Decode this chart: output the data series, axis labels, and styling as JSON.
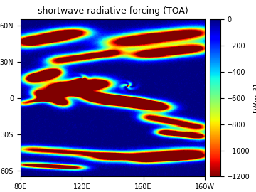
{
  "title": "shortwave radiative forcing (TOA)",
  "lon_min": 80,
  "lon_max": 200,
  "lat_min": -65,
  "lat_max": 65,
  "vmin": -1200,
  "vmax": 0,
  "colorbar_label": "[Wm⁻²]",
  "colorbar_ticks": [
    0,
    -200,
    -400,
    -600,
    -800,
    -1000,
    -1200
  ],
  "xticks": [
    80,
    120,
    160,
    200
  ],
  "xtick_labels": [
    "80E",
    "120E",
    "160E",
    "160W"
  ],
  "yticks": [
    60,
    30,
    0,
    -30,
    -60
  ],
  "figsize": [
    3.6,
    2.7
  ],
  "dpi": 100,
  "seed": 42
}
